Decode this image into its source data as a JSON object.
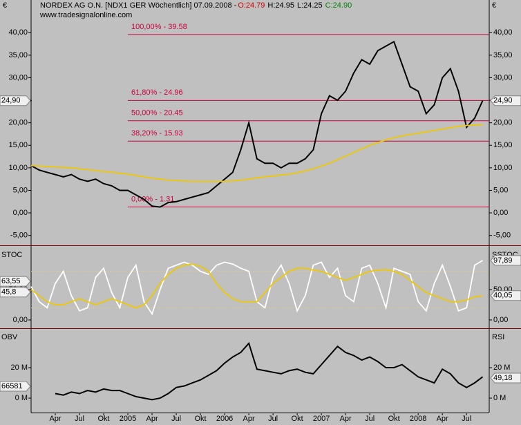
{
  "chart_data": [
    {
      "type": "line",
      "title": "NORDEX AG O.N. [NDX1 GER  Wöchentlich] 07.09.2008 -",
      "ohlc": [
        {
          "value": 24.79,
          "label": "O:24.79",
          "color": "#d00000"
        },
        {
          "value": 24.95,
          "label": "H:24.95",
          "color": "#000000"
        },
        {
          "value": 24.25,
          "label": "L:24.25",
          "color": "#000000"
        },
        {
          "value": 24.9,
          "label": "C:24.90",
          "color": "#008000"
        }
      ],
      "subtitle": "www.tradesignalonline.com",
      "unit_label": "€",
      "ylim": [
        -7.2,
        45.1
      ],
      "yticks": [
        {
          "value": 40,
          "label": "40,00"
        },
        {
          "value": 35,
          "label": "35,00"
        },
        {
          "value": 30,
          "label": "30,00"
        },
        {
          "value": 25,
          "label": "25,00"
        },
        {
          "value": 20,
          "label": "20,00"
        },
        {
          "value": 15,
          "label": "15,00"
        },
        {
          "value": 10,
          "label": "10,00"
        },
        {
          "value": 5,
          "label": "5,00"
        },
        {
          "value": 0,
          "label": "0,00"
        },
        {
          "value": -5,
          "label": "-5,00"
        }
      ],
      "fib_levels": [
        {
          "value": 39.58,
          "label": "100,00% - 39.58"
        },
        {
          "value": 24.96,
          "label": "61,80% - 24.96"
        },
        {
          "value": 20.45,
          "label": "50,00% - 20.45"
        },
        {
          "value": 15.93,
          "label": "38,20% - 15.93"
        },
        {
          "value": 1.31,
          "label": "0,00% - 1.31"
        }
      ],
      "fib_color": "#c8003c",
      "markers": [
        {
          "value": 24.9,
          "label": "24,90"
        }
      ],
      "series": [
        {
          "name": "Close",
          "color": "#000000",
          "values": [
            10.5,
            9.5,
            9,
            8.5,
            8,
            8.5,
            7.5,
            7,
            7.5,
            6.5,
            6,
            5,
            5,
            4,
            3,
            1.5,
            1.3,
            2.3,
            2.5,
            3,
            3.5,
            4,
            4.5,
            6,
            7.5,
            9,
            14,
            20,
            12,
            11,
            11,
            10,
            11,
            11,
            12,
            14,
            22,
            26,
            25,
            27,
            31,
            34,
            33,
            36,
            37,
            38,
            33,
            28,
            27,
            22,
            24,
            30,
            32,
            27,
            19,
            21,
            24.9
          ]
        },
        {
          "name": "MA",
          "color": "#f0c800",
          "values": [
            10.5,
            10.4,
            10.3,
            10.2,
            10.1,
            10,
            9.8,
            9.6,
            9.4,
            9.2,
            9,
            8.8,
            8.6,
            8.3,
            8,
            7.7,
            7.5,
            7.3,
            7.2,
            7.1,
            7,
            7,
            7,
            7,
            7,
            7.1,
            7.3,
            7.5,
            7.8,
            8,
            8.2,
            8.4,
            8.6,
            8.9,
            9.3,
            9.8,
            10.4,
            11,
            11.8,
            12.6,
            13.4,
            14.2,
            15,
            15.6,
            16.2,
            16.7,
            17.1,
            17.4,
            17.7,
            18,
            18.3,
            18.6,
            18.9,
            19.2,
            19.4,
            19.5,
            19.6
          ]
        }
      ]
    },
    {
      "type": "line",
      "left_label": "STOC",
      "right_label": "SSTOC",
      "ylim": [
        -11.4,
        120.5
      ],
      "yticks": [
        {
          "value": 0,
          "label": "0,00"
        },
        {
          "value": 50,
          "label": "50,00"
        }
      ],
      "levels": [
        20,
        80
      ],
      "level_color": "#e8d070",
      "markers_left": [
        {
          "value": 63.55,
          "label": "63,55"
        },
        {
          "value": 45.8,
          "label": "45,8"
        }
      ],
      "markers_right": [
        {
          "value": 97.89,
          "label": "97,89"
        },
        {
          "value": 40.05,
          "label": "40,05"
        }
      ],
      "series": [
        {
          "name": "Stoch",
          "color": "#ffffff",
          "values": [
            55,
            30,
            20,
            60,
            80,
            40,
            15,
            20,
            70,
            85,
            45,
            20,
            70,
            90,
            30,
            10,
            50,
            85,
            90,
            95,
            90,
            80,
            75,
            90,
            95,
            92,
            85,
            80,
            30,
            20,
            70,
            90,
            60,
            15,
            40,
            90,
            95,
            70,
            85,
            40,
            30,
            85,
            90,
            60,
            20,
            85,
            80,
            75,
            30,
            15,
            60,
            90,
            55,
            15,
            20,
            90,
            97.89
          ]
        },
        {
          "name": "Slow",
          "color": "#f0c800",
          "values": [
            50,
            40,
            30,
            25,
            25,
            30,
            35,
            30,
            25,
            30,
            35,
            30,
            25,
            20,
            25,
            40,
            60,
            75,
            85,
            90,
            92,
            88,
            80,
            60,
            45,
            35,
            30,
            30,
            30,
            45,
            60,
            70,
            80,
            85,
            85,
            82,
            80,
            75,
            70,
            65,
            70,
            75,
            80,
            82,
            83,
            80,
            75,
            65,
            55,
            45,
            40,
            35,
            30,
            30,
            33,
            38,
            40.05
          ]
        }
      ]
    },
    {
      "type": "line",
      "left_label": "OBV",
      "right_label": "RSI",
      "left_value_text": "66581",
      "right_value_text": "49,18",
      "ylim": [
        -9.5,
        45
      ],
      "yticks": [
        {
          "value": 20,
          "label": "20 M"
        },
        {
          "value": 0,
          "label": "0 M"
        }
      ],
      "categories": [
        null,
        null,
        null,
        "Apr",
        null,
        null,
        "Jul",
        null,
        null,
        "Okt",
        null,
        null,
        "2005",
        null,
        null,
        "Apr",
        null,
        null,
        "Jul",
        null,
        null,
        "Okt",
        null,
        null,
        "2006",
        null,
        null,
        "Apr",
        null,
        null,
        "Jul",
        null,
        null,
        "Okt",
        null,
        null,
        "2007",
        null,
        null,
        "Apr",
        null,
        null,
        "Jul",
        null,
        null,
        "Okt",
        null,
        null,
        "2008",
        null,
        null,
        "Apr",
        null,
        null,
        "Jul",
        null,
        null
      ],
      "series": [
        {
          "name": "OBV",
          "color": "#000000",
          "values": [
            null,
            null,
            null,
            3,
            2,
            4,
            3,
            5,
            4,
            6,
            5,
            5,
            3,
            1,
            0,
            -1,
            0,
            3,
            7,
            8,
            10,
            12,
            15,
            18,
            23,
            27,
            30,
            36,
            19,
            18,
            17,
            16,
            18,
            19,
            17,
            16,
            22,
            28,
            34,
            30,
            28,
            25,
            27,
            24,
            20,
            20,
            22,
            18,
            14,
            12,
            10,
            19,
            16,
            10,
            7,
            10,
            14
          ]
        }
      ]
    }
  ]
}
